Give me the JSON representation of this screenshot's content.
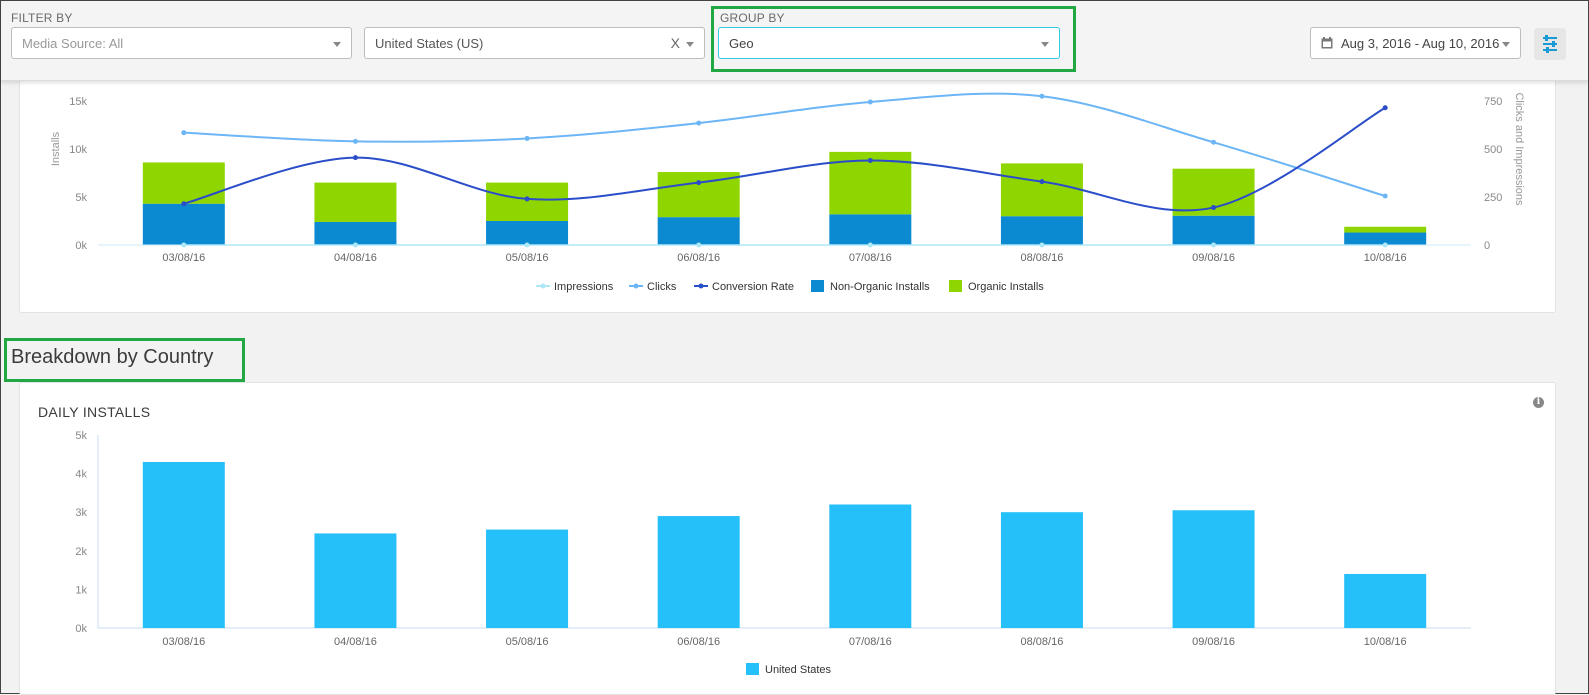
{
  "filter_bar": {
    "filter_label": "FILTER BY",
    "media_source": "Media Source: All",
    "country": "United States (US)",
    "country_clear": "X",
    "group_label": "GROUP BY",
    "group_value": "Geo",
    "date_range": "Aug 3, 2016 - Aug 10, 2016"
  },
  "section": {
    "title": "Breakdown by Country"
  },
  "daily_installs": {
    "title": "DAILY INSTALLS"
  },
  "colors": {
    "impressions": "#aee8f8",
    "clicks": "#6cb6f5",
    "conversion": "#2a4dc9",
    "non_organic": "#0b8ad1",
    "organic": "#8fd600",
    "us_bar": "#25bffa",
    "highlight": "#21a843"
  },
  "chart_data": [
    {
      "type": "bar",
      "categories": [
        "03/08/16",
        "04/08/16",
        "05/08/16",
        "06/08/16",
        "07/08/16",
        "08/08/16",
        "09/08/16",
        "10/08/16"
      ],
      "y_left": {
        "label": "Installs",
        "ticks": [
          "0k",
          "5k",
          "10k",
          "15k"
        ],
        "range": [
          0,
          15000
        ]
      },
      "y_right": {
        "label": "Clicks and Impressions",
        "ticks": [
          "0",
          "250",
          "500",
          "750"
        ],
        "range": [
          0,
          750
        ]
      },
      "series": [
        {
          "name": "Impressions",
          "kind": "line",
          "axis": "right",
          "values": [
            0,
            0,
            0,
            0,
            0,
            0,
            0,
            0
          ]
        },
        {
          "name": "Clicks",
          "kind": "line",
          "axis": "right",
          "values": [
            585,
            540,
            555,
            635,
            745,
            775,
            535,
            255
          ]
        },
        {
          "name": "Conversion Rate",
          "kind": "line",
          "axis": "right",
          "values": [
            215,
            455,
            240,
            325,
            440,
            330,
            195,
            715
          ]
        },
        {
          "name": "Non-Organic Installs",
          "kind": "bar",
          "axis": "left",
          "stack": "installs",
          "values": [
            4300,
            2400,
            2500,
            2900,
            3200,
            3000,
            3050,
            1300
          ]
        },
        {
          "name": "Organic Installs",
          "kind": "bar",
          "axis": "left",
          "stack": "installs",
          "values": [
            4300,
            4100,
            4000,
            4700,
            6500,
            5500,
            4900,
            600
          ]
        }
      ],
      "legend": "bottom"
    },
    {
      "type": "bar",
      "categories": [
        "03/08/16",
        "04/08/16",
        "05/08/16",
        "06/08/16",
        "07/08/16",
        "08/08/16",
        "09/08/16",
        "10/08/16"
      ],
      "y": {
        "ticks": [
          "0k",
          "1k",
          "2k",
          "3k",
          "4k",
          "5k"
        ],
        "range": [
          0,
          5000
        ]
      },
      "series": [
        {
          "name": "United States",
          "values": [
            4300,
            2450,
            2550,
            2900,
            3200,
            3000,
            3050,
            1400
          ]
        }
      ],
      "legend": "bottom"
    }
  ]
}
